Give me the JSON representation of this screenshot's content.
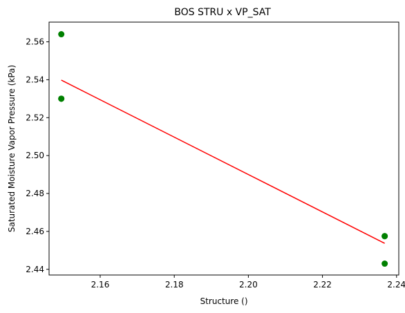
{
  "chart_data": {
    "type": "scatter",
    "title": "BOS STRU x VP_SAT",
    "xlabel": "Structure ()",
    "ylabel": "Saturated Moisture Vapor Pressure (kPa)",
    "xlim": [
      2.1462,
      2.2406
    ],
    "ylim": [
      2.437,
      2.5704
    ],
    "x_ticks": [
      2.16,
      2.18,
      2.2,
      2.22,
      2.24
    ],
    "y_ticks": [
      2.44,
      2.46,
      2.48,
      2.5,
      2.52,
      2.54,
      2.56
    ],
    "grid": false,
    "series": [
      {
        "kind": "scatter",
        "color": "#008000",
        "points": [
          {
            "x": 2.1495,
            "y": 2.564
          },
          {
            "x": 2.1495,
            "y": 2.53
          },
          {
            "x": 2.1495,
            "y": 2.53
          },
          {
            "x": 2.2368,
            "y": 2.4575
          },
          {
            "x": 2.2368,
            "y": 2.4575
          },
          {
            "x": 2.2368,
            "y": 2.443
          }
        ]
      },
      {
        "kind": "line",
        "color": "#ff0000",
        "points": [
          {
            "x": 2.1495,
            "y": 2.5398
          },
          {
            "x": 2.2368,
            "y": 2.4537
          }
        ]
      }
    ]
  }
}
